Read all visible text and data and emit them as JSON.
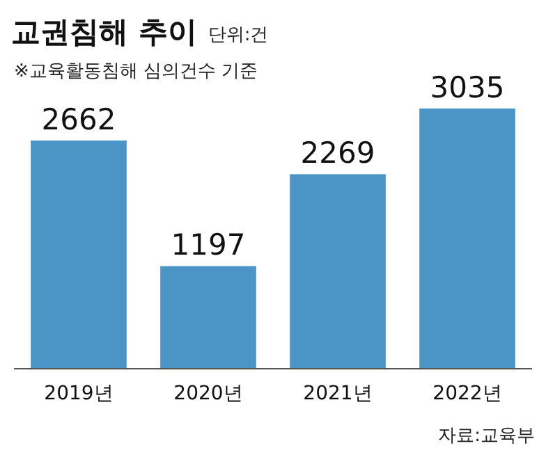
{
  "chart_data": {
    "type": "bar",
    "title": "교권침해 추이",
    "subtitle": "※교육활동침해 심의건수 기준",
    "annotations": [
      "단위:건",
      "자료:교육부"
    ],
    "categories": [
      "2019년",
      "2020년",
      "2021년",
      "2022년"
    ],
    "values": [
      2662,
      1197,
      2269,
      3035
    ],
    "color": "#4a94c6",
    "data_labels": true
  }
}
